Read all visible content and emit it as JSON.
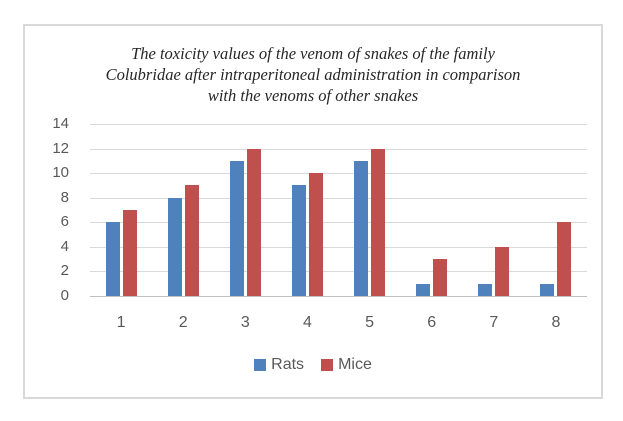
{
  "chart_data": {
    "type": "bar",
    "title": "The toxicity values of the venom of snakes of the family Colubridae after intraperitoneal administration in comparison with the venoms of other snakes",
    "categories": [
      "1",
      "2",
      "3",
      "4",
      "5",
      "6",
      "7",
      "8"
    ],
    "series": [
      {
        "name": "Rats",
        "color": "#4F81BD",
        "values": [
          6,
          8,
          11,
          9,
          11,
          1,
          1,
          1
        ]
      },
      {
        "name": "Mice",
        "color": "#C0504D",
        "values": [
          7,
          9,
          12,
          10,
          12,
          3,
          4,
          6
        ]
      }
    ],
    "xlabel": "",
    "ylabel": "",
    "ylim": [
      0,
      14
    ],
    "yticks": [
      0,
      2,
      4,
      6,
      8,
      10,
      12,
      14
    ],
    "grid": true,
    "legend_position": "bottom"
  },
  "colors": {
    "bar_rats": "#4F81BD",
    "bar_mice": "#C0504D",
    "gridline": "#D9D9D9",
    "axis_line": "#BFBFBF",
    "tick_text": "#595959",
    "title_text": "#262626",
    "frame_border": "#D9D9D9",
    "background": "#FFFFFF"
  }
}
